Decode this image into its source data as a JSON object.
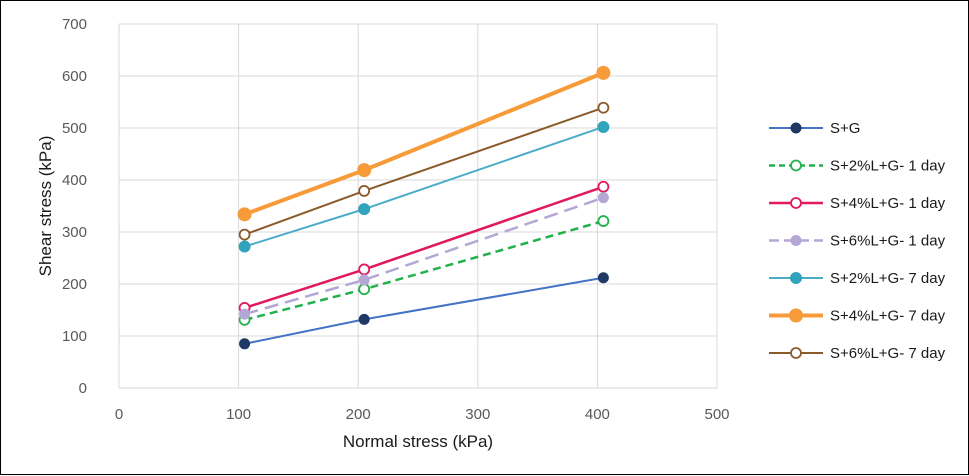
{
  "chart_data": {
    "type": "line",
    "title": "",
    "xlabel": "Normal stress (kPa)",
    "ylabel": "Shear stress (kPa)",
    "xlim": [
      0,
      500
    ],
    "ylim": [
      0,
      700
    ],
    "xticks": [
      0,
      100,
      200,
      300,
      400,
      500
    ],
    "yticks": [
      0,
      100,
      200,
      300,
      400,
      500,
      600,
      700
    ],
    "grid": true,
    "legend_position": "right",
    "x": [
      105,
      205,
      405
    ],
    "series": [
      {
        "name": "S+G",
        "values": [
          85,
          132,
          212
        ],
        "color": "#4472c4",
        "marker_fill": "#1f3864",
        "marker": "filled",
        "dash": "",
        "width": 2,
        "marker_size": 5
      },
      {
        "name": "S+2%L+G- 1 day",
        "values": [
          131,
          190,
          321
        ],
        "color": "#22b14c",
        "marker_fill": "#ffffff",
        "marker": "hollow",
        "dash": "8,5",
        "width": 2.5,
        "marker_size": 5
      },
      {
        "name": "S+4%L+G- 1 day",
        "values": [
          154,
          228,
          387
        ],
        "color": "#e0195f",
        "marker_fill": "#ffffff",
        "marker": "hollow",
        "dash": "",
        "width": 2.5,
        "marker_size": 5
      },
      {
        "name": "S+6%L+G- 1 day",
        "values": [
          142,
          208,
          366
        ],
        "color": "#b4a7d6",
        "marker_fill": "#b4a7d6",
        "marker": "filled",
        "dash": "14,7",
        "width": 2.5,
        "marker_size": 5
      },
      {
        "name": "S+2%L+G- 7 day",
        "values": [
          272,
          344,
          502
        ],
        "color": "#4bacc6",
        "marker_fill": "#31a3bd",
        "marker": "filled",
        "dash": "",
        "width": 2,
        "marker_size": 5.5
      },
      {
        "name": "S+4%L+G- 7 day",
        "values": [
          334,
          419,
          606
        ],
        "color": "#f79a38",
        "marker_fill": "#f79a38",
        "marker": "filled",
        "dash": "",
        "width": 4,
        "marker_size": 6.5
      },
      {
        "name": "S+6%L+G- 7 day",
        "values": [
          295,
          379,
          539
        ],
        "color": "#8b5a2b",
        "marker_fill": "#ffffff",
        "marker": "hollow",
        "dash": "",
        "width": 2,
        "marker_size": 5
      }
    ]
  }
}
